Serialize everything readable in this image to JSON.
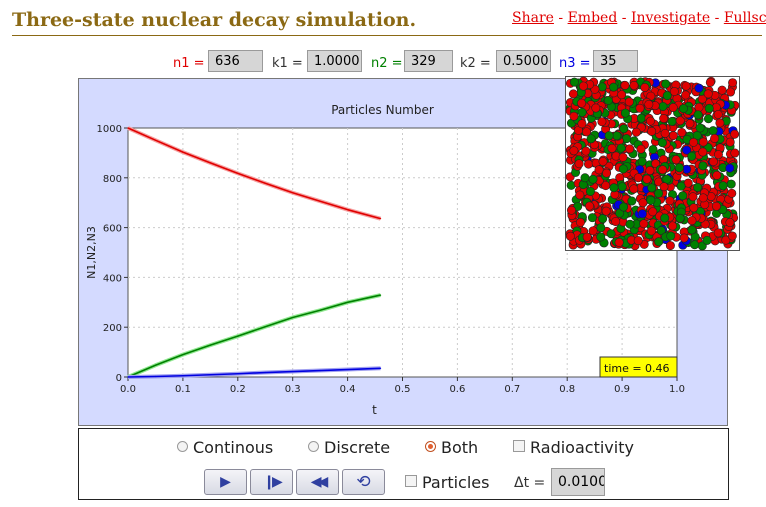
{
  "title": "Three-state nuclear decay simulation.",
  "links": {
    "share": "Share",
    "embed": "Embed",
    "investigate": "Investigate",
    "fullscreen": "Fullscr",
    "sep": " - "
  },
  "params": {
    "n1_label": "n1 =",
    "n1_value": "636",
    "k1_label": "k1 =",
    "k1_value": "1.0000",
    "n2_label": "n2 =",
    "n2_value": "329",
    "k2_label": "k2 =",
    "k2_value": "0.5000",
    "n3_label": "n3 =",
    "n3_value": "35"
  },
  "colors": {
    "n1": "#e00000",
    "n2": "#008000",
    "n3": "#0000e0",
    "title": "#8b6914",
    "panel": "#d4daff",
    "time_box": "#ffff00"
  },
  "chart_data": {
    "type": "line",
    "title": "Particles Number",
    "xlabel": "t",
    "ylabel": "N1,N2,N3",
    "xlim": [
      0,
      1
    ],
    "ylim": [
      0,
      1000
    ],
    "xticks": [
      "0.0",
      "0.1",
      "0.2",
      "0.3",
      "0.4",
      "0.5",
      "0.6",
      "0.7",
      "0.8",
      "0.9",
      "1.0"
    ],
    "yticks": [
      "0",
      "200",
      "400",
      "600",
      "800",
      "1000"
    ],
    "x": [
      0,
      0.05,
      0.1,
      0.15,
      0.2,
      0.25,
      0.3,
      0.35,
      0.4,
      0.46
    ],
    "series": [
      {
        "key": "N1",
        "color": "#e00000",
        "light": "#f6a0a0",
        "values": [
          1000,
          951,
          903,
          860,
          818,
          778,
          740,
          706,
          672,
          636
        ]
      },
      {
        "key": "N2",
        "color": "#008000",
        "light": "#90e890",
        "values": [
          0,
          47,
          90,
          128,
          164,
          202,
          239,
          268,
          300,
          329
        ]
      },
      {
        "key": "N3",
        "color": "#0000e0",
        "light": "#a0a0f0",
        "values": [
          0,
          2,
          5,
          9,
          13,
          18,
          22,
          26,
          30,
          35
        ]
      }
    ],
    "time_label": "time = 0.46"
  },
  "controls": {
    "mode_options": [
      "Continous",
      "Discrete",
      "Both"
    ],
    "mode_selected": "Both",
    "radioactivity_label": "Radioactivity",
    "particles_label": "Particles",
    "dt_label": "Δt =",
    "dt_value": "0.0100"
  }
}
